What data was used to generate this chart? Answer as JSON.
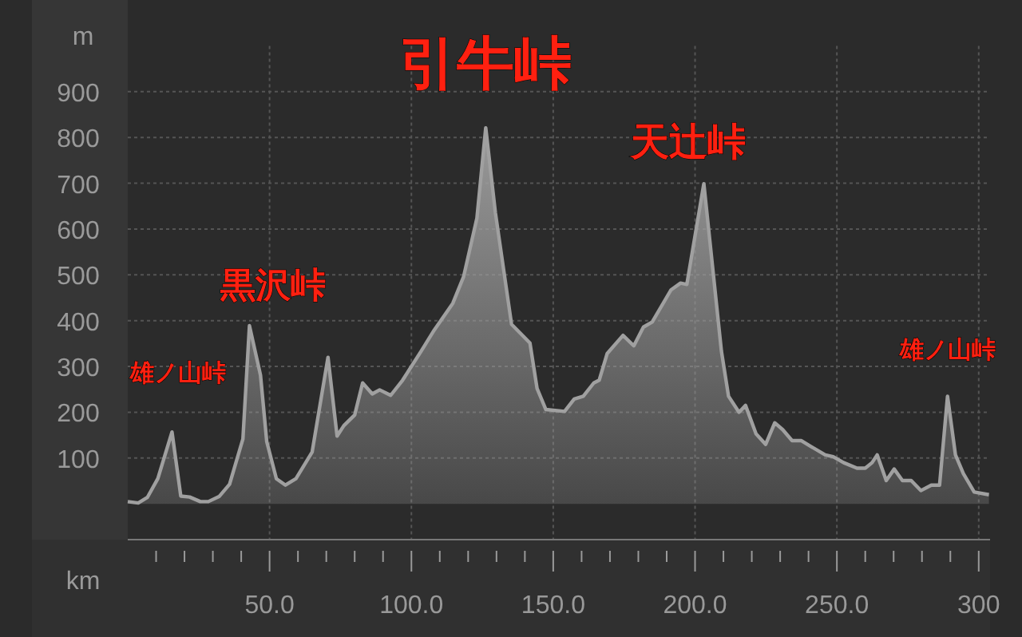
{
  "chart_data": {
    "type": "area",
    "xlabel": "km",
    "ylabel": "m",
    "xlim": [
      0,
      304
    ],
    "ylim": [
      -78,
      1000
    ],
    "xticks": [
      {
        "value": 10,
        "label": null
      },
      {
        "value": 20,
        "label": null
      },
      {
        "value": 30,
        "label": null
      },
      {
        "value": 40,
        "label": null
      },
      {
        "value": 50,
        "label": "50.0"
      },
      {
        "value": 60,
        "label": null
      },
      {
        "value": 70,
        "label": null
      },
      {
        "value": 80,
        "label": null
      },
      {
        "value": 90,
        "label": null
      },
      {
        "value": 100,
        "label": "100.0"
      },
      {
        "value": 110,
        "label": null
      },
      {
        "value": 120,
        "label": null
      },
      {
        "value": 130,
        "label": null
      },
      {
        "value": 140,
        "label": null
      },
      {
        "value": 150,
        "label": "150.0"
      },
      {
        "value": 160,
        "label": null
      },
      {
        "value": 170,
        "label": null
      },
      {
        "value": 180,
        "label": null
      },
      {
        "value": 190,
        "label": null
      },
      {
        "value": 200,
        "label": "200.0"
      },
      {
        "value": 210,
        "label": null
      },
      {
        "value": 220,
        "label": null
      },
      {
        "value": 230,
        "label": null
      },
      {
        "value": 240,
        "label": null
      },
      {
        "value": 250,
        "label": "250.0"
      },
      {
        "value": 260,
        "label": null
      },
      {
        "value": 270,
        "label": null
      },
      {
        "value": 280,
        "label": null
      },
      {
        "value": 290,
        "label": null
      },
      {
        "value": 300,
        "label": "300"
      }
    ],
    "yticks": [
      100,
      200,
      300,
      400,
      500,
      600,
      700,
      800,
      900
    ],
    "grid": true,
    "x": [
      0,
      3.7,
      6.9,
      10.6,
      15.6,
      18.7,
      21.8,
      25.6,
      28.4,
      32.2,
      35.9,
      40.6,
      42.9,
      46.8,
      49.0,
      52.4,
      55.6,
      59.3,
      65.0,
      70.6,
      73.8,
      76.2,
      80.0,
      82.8,
      86.2,
      88.8,
      92.7,
      96.9,
      103.4,
      108.1,
      114.6,
      118.4,
      123.1,
      126.2,
      129.6,
      135.3,
      141.8,
      144.3,
      147.4,
      154.0,
      157.4,
      160.6,
      164.3,
      166.2,
      169.0,
      174.6,
      178.4,
      181.8,
      184.9,
      191.5,
      194.9,
      197.1,
      203.1,
      209.3,
      211.8,
      215.5,
      217.8,
      221.5,
      224.9,
      228.1,
      230.9,
      234.2,
      237.5,
      241.2,
      245.9,
      248.7,
      252.4,
      257.1,
      260.0,
      262.4,
      264.2,
      267.4,
      270.2,
      273.1,
      276.2,
      279.6,
      283.3,
      286.2,
      289.0,
      291.8,
      294.6,
      298.4,
      303.6
    ],
    "series": [
      {
        "color": "#a0a0a0",
        "values": [
          5,
          2,
          14,
          55,
          157,
          17,
          15,
          5,
          5,
          16,
          43,
          142,
          389,
          281,
          136,
          55,
          41,
          55,
          113,
          320,
          148,
          171,
          194,
          264,
          240,
          249,
          237,
          270,
          333,
          380,
          438,
          496,
          624,
          821,
          636,
          392,
          351,
          252,
          206,
          202,
          229,
          235,
          264,
          270,
          328,
          368,
          345,
          386,
          397,
          467,
          482,
          479,
          699,
          333,
          235,
          200,
          215,
          153,
          130,
          177,
          162,
          138,
          138,
          124,
          107,
          103,
          90,
          78,
          78,
          90,
          107,
          51,
          76,
          51,
          51,
          29,
          41,
          41,
          235,
          107,
          66,
          26,
          20
        ]
      }
    ],
    "annotations": [
      {
        "text": "雄ノ山峠",
        "x": 15.6,
        "y": 157
      },
      {
        "text": "黒沢峠",
        "x": 42.9,
        "y": 389
      },
      {
        "text": "引牛峠",
        "x": 126.2,
        "y": 821
      },
      {
        "text": "天辻峠",
        "x": 203.1,
        "y": 699
      },
      {
        "text": "雄ノ山峠",
        "x": 289.0,
        "y": 235
      }
    ]
  }
}
